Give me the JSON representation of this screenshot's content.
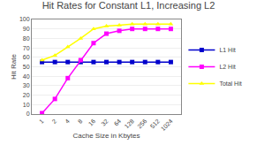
{
  "chart_data": {
    "type": "line",
    "title": "Hit Rates for Constant L1, Increasing L2",
    "xlabel": "Cache Size in Kbytes",
    "ylabel": "Hit Rate",
    "categories": [
      "1",
      "2",
      "4",
      "8",
      "16",
      "32",
      "64",
      "128",
      "256",
      "512",
      "1024"
    ],
    "series": [
      {
        "name": "L1 Hit",
        "color": "#0000cc",
        "marker": "square",
        "values": [
          55,
          55,
          55,
          55,
          55,
          55,
          55,
          55,
          55,
          55,
          55
        ]
      },
      {
        "name": "L2 Hit",
        "color": "#ff00ff",
        "marker": "square",
        "values": [
          1,
          16,
          38,
          57,
          75,
          85,
          88,
          90,
          90,
          90,
          90
        ]
      },
      {
        "name": "Total Hit",
        "color": "#ffff00",
        "marker": "triangle-up",
        "values": [
          57,
          62,
          71,
          80,
          90,
          93,
          94,
          95,
          95,
          95,
          95
        ]
      }
    ],
    "ylim": [
      0,
      100
    ],
    "yticks": [
      0,
      10,
      20,
      30,
      40,
      50,
      60,
      70,
      80,
      90,
      100
    ],
    "grid": "y",
    "legend": "right"
  }
}
